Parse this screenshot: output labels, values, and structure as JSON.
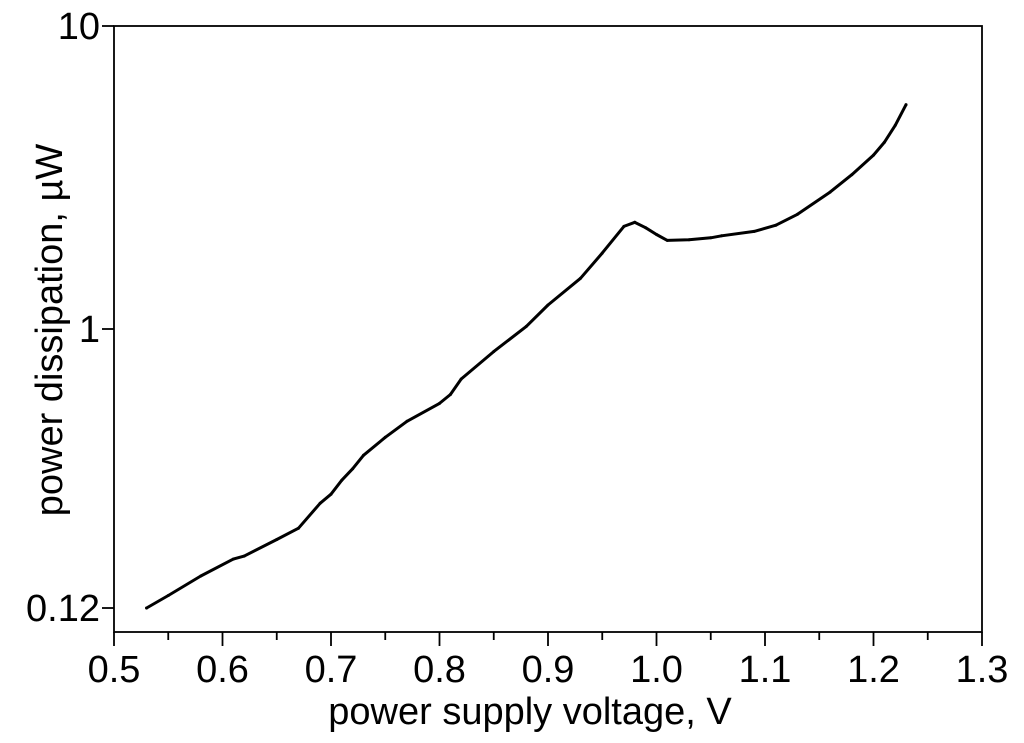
{
  "chart_data": {
    "type": "line",
    "title": "",
    "xlabel": "power supply voltage, V",
    "ylabel": "power dissipation, µW",
    "xlim": [
      0.5,
      1.3
    ],
    "ylim": [
      0.1,
      10
    ],
    "y_scale": "log",
    "grid": false,
    "x_ticks": [
      {
        "value": 0.5,
        "label": "0.5"
      },
      {
        "value": 0.6,
        "label": "0.6"
      },
      {
        "value": 0.7,
        "label": "0.7"
      },
      {
        "value": 0.8,
        "label": "0.8"
      },
      {
        "value": 0.9,
        "label": "0.9"
      },
      {
        "value": 1.0,
        "label": "1.0"
      },
      {
        "value": 1.1,
        "label": "1.1"
      },
      {
        "value": 1.2,
        "label": "1.2"
      },
      {
        "value": 1.3,
        "label": "1.3"
      }
    ],
    "x_minor_ticks": [
      0.55,
      0.65,
      0.75,
      0.85,
      0.95,
      1.05,
      1.15,
      1.25
    ],
    "y_ticks": [
      {
        "value": 10,
        "label": "10"
      },
      {
        "value": 1,
        "label": "1"
      },
      {
        "value": 0.12,
        "label": "0.12"
      }
    ],
    "series": [
      {
        "color": "#000000",
        "x": [
          0.53,
          0.55,
          0.58,
          0.61,
          0.62,
          0.65,
          0.67,
          0.69,
          0.7,
          0.71,
          0.72,
          0.73,
          0.75,
          0.77,
          0.8,
          0.81,
          0.82,
          0.85,
          0.88,
          0.9,
          0.93,
          0.95,
          0.97,
          0.98,
          0.99,
          1.0,
          1.01,
          1.03,
          1.05,
          1.06,
          1.09,
          1.11,
          1.13,
          1.16,
          1.18,
          1.2,
          1.21,
          1.22,
          1.23
        ],
        "y": [
          0.12,
          0.132,
          0.153,
          0.174,
          0.178,
          0.202,
          0.22,
          0.266,
          0.285,
          0.317,
          0.346,
          0.383,
          0.439,
          0.496,
          0.568,
          0.608,
          0.684,
          0.842,
          1.02,
          1.2,
          1.47,
          1.78,
          2.18,
          2.25,
          2.16,
          2.05,
          1.96,
          1.97,
          2.0,
          2.03,
          2.1,
          2.2,
          2.39,
          2.83,
          3.23,
          3.75,
          4.13,
          4.7,
          5.5
        ]
      }
    ]
  }
}
